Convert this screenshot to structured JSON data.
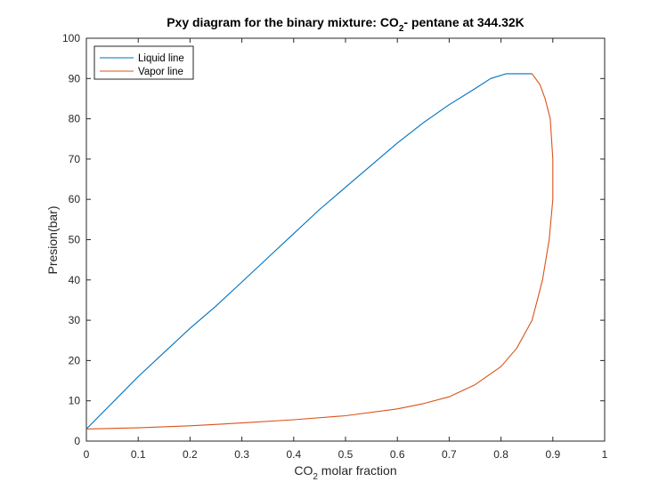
{
  "chart_data": {
    "type": "line",
    "title": {
      "main": "Pxy diagram for the binary mixture: CO",
      "subscript": "2",
      "rest": "- pentane at 344.32K"
    },
    "xlabel": {
      "main": "CO",
      "subscript": "2",
      "rest": " molar fraction"
    },
    "ylabel": "Presion(bar)",
    "xlim": [
      0,
      1
    ],
    "ylim": [
      0,
      100
    ],
    "xticks": [
      0,
      0.1,
      0.2,
      0.3,
      0.4,
      0.5,
      0.6,
      0.7,
      0.8,
      0.9,
      1
    ],
    "yticks": [
      0,
      10,
      20,
      30,
      40,
      50,
      60,
      70,
      80,
      90,
      100
    ],
    "xtick_labels": [
      "0",
      "0.1",
      "0.2",
      "0.3",
      "0.4",
      "0.5",
      "0.6",
      "0.7",
      "0.8",
      "0.9",
      "1"
    ],
    "ytick_labels": [
      "0",
      "10",
      "20",
      "30",
      "40",
      "50",
      "60",
      "70",
      "80",
      "90",
      "100"
    ],
    "grid": false,
    "legend_position": "top-left",
    "series": [
      {
        "name": "Liquid line",
        "color": "#0072BD",
        "points": [
          [
            0.0,
            3.0
          ],
          [
            0.05,
            9.5
          ],
          [
            0.1,
            16.0
          ],
          [
            0.15,
            22.0
          ],
          [
            0.2,
            28.0
          ],
          [
            0.25,
            33.5
          ],
          [
            0.3,
            39.5
          ],
          [
            0.35,
            45.5
          ],
          [
            0.4,
            51.5
          ],
          [
            0.45,
            57.5
          ],
          [
            0.5,
            63.0
          ],
          [
            0.55,
            68.5
          ],
          [
            0.6,
            74.0
          ],
          [
            0.65,
            79.0
          ],
          [
            0.7,
            83.5
          ],
          [
            0.75,
            87.5
          ],
          [
            0.78,
            90.0
          ],
          [
            0.81,
            91.2
          ],
          [
            0.86,
            91.2
          ]
        ]
      },
      {
        "name": "Vapor line",
        "color": "#D95319",
        "points": [
          [
            0.0,
            3.0
          ],
          [
            0.1,
            3.3
          ],
          [
            0.2,
            3.8
          ],
          [
            0.3,
            4.5
          ],
          [
            0.4,
            5.3
          ],
          [
            0.5,
            6.3
          ],
          [
            0.6,
            8.0
          ],
          [
            0.65,
            9.3
          ],
          [
            0.7,
            11.0
          ],
          [
            0.75,
            14.0
          ],
          [
            0.8,
            18.5
          ],
          [
            0.83,
            23.0
          ],
          [
            0.86,
            30.0
          ],
          [
            0.88,
            40.0
          ],
          [
            0.893,
            50.0
          ],
          [
            0.9,
            60.0
          ],
          [
            0.9,
            70.0
          ],
          [
            0.895,
            80.0
          ],
          [
            0.885,
            85.0
          ],
          [
            0.875,
            88.5
          ],
          [
            0.86,
            91.2
          ]
        ]
      }
    ]
  }
}
